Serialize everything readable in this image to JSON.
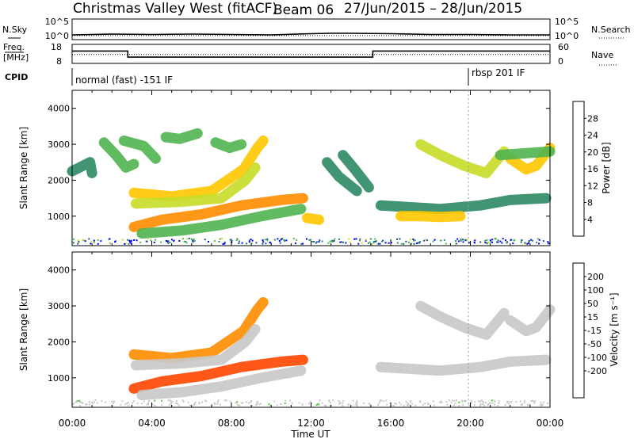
{
  "header": {
    "title": "Christmas Valley West (fitACF)",
    "beam": "Beam 06",
    "date_range": "27/Jun/2015 – 28/Jun/2015"
  },
  "panels": {
    "noise": {
      "left_label": "N.Sky",
      "right_label": "N.Search",
      "left_ticks": [
        "10^5",
        "10^0"
      ],
      "right_ticks": [
        "10^5",
        "10^0"
      ]
    },
    "freq": {
      "left_label_1": "Freq.",
      "left_label_2": "[MHz]",
      "right_label": "Nave",
      "left_ticks": [
        "18",
        "8"
      ],
      "right_ticks": [
        "60",
        "0"
      ]
    },
    "cpid": {
      "label": "CPID",
      "mode_1": "normal (fast) -151 IF",
      "mode_2": "rbsp 201 IF"
    }
  },
  "colors": {
    "power_scale": [
      "#0000ff",
      "#2050a0",
      "#2e8a64",
      "#50b450",
      "#c8dc28",
      "#ffc800",
      "#ff8c00",
      "#ff3c00",
      "#e60000"
    ],
    "velocity_scale": [
      "#ff0000",
      "#ff4600",
      "#ff8c00",
      "#ffbe32",
      "#c8c8c8",
      "#c8c8c8",
      "#50c83c",
      "#2a8c64",
      "#1e50aa",
      "#1428c8"
    ]
  },
  "chart_data": [
    {
      "type": "line",
      "name": "noise",
      "x_unit": "hours UT",
      "xlim": [
        0,
        24
      ],
      "series": [
        {
          "name": "N.Sky",
          "x": [
            0,
            1,
            2,
            4,
            6,
            8,
            10,
            12,
            13,
            14,
            16,
            18,
            20,
            22,
            24
          ],
          "y": [
            1.2,
            1.3,
            1.4,
            1.3,
            1.4,
            1.3,
            1.2,
            1.5,
            1.6,
            1.6,
            1.5,
            1.3,
            1.3,
            1.2,
            1.2
          ]
        },
        {
          "name": "N.Search",
          "x": [
            0,
            4,
            8,
            12,
            16,
            20,
            24
          ],
          "y": [
            1.0,
            1.0,
            1.0,
            1.0,
            1.0,
            1.0,
            1.0
          ]
        }
      ]
    },
    {
      "type": "line",
      "name": "frequency_nave",
      "x_unit": "hours UT",
      "xlim": [
        0,
        24
      ],
      "series": [
        {
          "name": "Freq.",
          "x": [
            0,
            2.8,
            2.8,
            15.1,
            15.1,
            24
          ],
          "y": [
            14.5,
            14.5,
            11.3,
            11.3,
            14.5,
            14.5
          ]
        },
        {
          "name": "Nave",
          "x": [
            0,
            24
          ],
          "y": [
            28,
            28
          ]
        }
      ]
    },
    {
      "type": "heatmap",
      "name": "power",
      "xlabel": "Time UT",
      "ylabel": "Slant Range [km]",
      "xlim": [
        0,
        24
      ],
      "ylim": [
        180,
        4500
      ],
      "x_ticks": [
        "00:00",
        "04:00",
        "08:00",
        "12:00",
        "16:00",
        "20:00",
        "00:00"
      ],
      "y_ticks": [
        1000,
        2000,
        3000,
        4000
      ],
      "colorbar": {
        "label": "Power [dB]",
        "ticks": [
          4,
          8,
          12,
          16,
          20,
          24,
          28
        ],
        "range": [
          0,
          32
        ]
      },
      "features": [
        {
          "t": [
            0.0,
            0.9,
            1.0
          ],
          "range_km": [
            2250,
            2500,
            2200
          ],
          "value": 10
        },
        {
          "t": [
            1.6,
            2.2,
            2.7,
            3.1
          ],
          "range_km": [
            3050,
            2700,
            2350,
            2450
          ],
          "value": 14
        },
        {
          "t": [
            2.6,
            3.6,
            4.2
          ],
          "range_km": [
            3100,
            2950,
            2600
          ],
          "value": 12
        },
        {
          "t": [
            4.7,
            5.4,
            6.3
          ],
          "range_km": [
            3200,
            3150,
            3300
          ],
          "value": 13
        },
        {
          "t": [
            7.2,
            7.9,
            8.5
          ],
          "range_km": [
            3050,
            2900,
            3000
          ],
          "value": 12
        },
        {
          "t": [
            3.1,
            5.0,
            7.0,
            8.6,
            9.3,
            9.6
          ],
          "range_km": [
            1650,
            1550,
            1700,
            2300,
            2900,
            3100
          ],
          "value": 20
        },
        {
          "t": [
            3.2,
            5.5,
            7.5,
            8.7,
            9.2
          ],
          "range_km": [
            1350,
            1400,
            1500,
            2000,
            2350
          ],
          "value": 16
        },
        {
          "t": [
            3.1,
            4.5,
            6.5,
            8.5,
            10.5,
            11.6
          ],
          "range_km": [
            700,
            900,
            1050,
            1300,
            1450,
            1500
          ],
          "value": 22
        },
        {
          "t": [
            3.5,
            5.5,
            7.5,
            9.5,
            11.5
          ],
          "range_km": [
            520,
            600,
            760,
            1000,
            1200
          ],
          "value": 12
        },
        {
          "t": [
            11.8,
            12.4
          ],
          "range_km": [
            950,
            900
          ],
          "value": 20
        },
        {
          "t": [
            12.8,
            13.4,
            14.3
          ],
          "range_km": [
            2500,
            2100,
            1700
          ],
          "value": 10
        },
        {
          "t": [
            13.6,
            14.2,
            14.9
          ],
          "range_km": [
            2700,
            2300,
            1800
          ],
          "value": 10
        },
        {
          "t": [
            15.5,
            17.0,
            18.5,
            20.5,
            22.0,
            23.8
          ],
          "range_km": [
            1300,
            1250,
            1200,
            1300,
            1450,
            1500
          ],
          "value": 10
        },
        {
          "t": [
            16.5,
            17.5,
            18.5,
            19.5
          ],
          "range_km": [
            1000,
            1000,
            980,
            1000
          ],
          "value": 20
        },
        {
          "t": [
            17.5,
            18.5,
            19.7,
            20.8,
            21.7
          ],
          "range_km": [
            3000,
            2700,
            2400,
            2200,
            2800
          ],
          "value": 16
        },
        {
          "t": [
            22.0,
            22.8,
            23.3,
            24.0
          ],
          "range_km": [
            2600,
            2300,
            2400,
            2900
          ],
          "value": 18
        },
        {
          "t": [
            21.5,
            24.0
          ],
          "range_km": [
            2700,
            2800
          ],
          "value": 14
        }
      ]
    },
    {
      "type": "heatmap",
      "name": "velocity",
      "xlabel": "Time UT",
      "ylabel": "Slant Range [km]",
      "xlim": [
        0,
        24
      ],
      "ylim": [
        180,
        4500
      ],
      "x_ticks": [
        "00:00",
        "04:00",
        "08:00",
        "12:00",
        "16:00",
        "20:00",
        "00:00"
      ],
      "y_ticks": [
        1000,
        2000,
        3000,
        4000
      ],
      "colorbar": {
        "label": "Velocity [m s⁻¹]",
        "ticks": [
          200,
          100,
          50,
          15,
          -15,
          -50,
          -100,
          -200
        ]
      },
      "features": [
        {
          "t": [
            3.1,
            5.0,
            7.0,
            8.6,
            9.3,
            9.6
          ],
          "range_km": [
            1650,
            1550,
            1700,
            2300,
            2900,
            3100
          ],
          "value": -60
        },
        {
          "t": [
            3.1,
            4.5,
            6.5,
            8.5,
            10.5,
            11.6
          ],
          "range_km": [
            700,
            900,
            1050,
            1300,
            1450,
            1500
          ],
          "value": -140
        },
        {
          "t": [
            3.5,
            5.5,
            7.5,
            9.5,
            11.5
          ],
          "range_km": [
            520,
            600,
            760,
            1000,
            1200
          ],
          "value": -5
        },
        {
          "t": [
            3.2,
            5.5,
            7.5,
            8.7,
            9.2
          ],
          "range_km": [
            1350,
            1400,
            1500,
            2000,
            2350
          ],
          "value": 0
        },
        {
          "t": [
            15.5,
            17.0,
            18.5,
            20.5,
            22.0,
            23.8
          ],
          "range_km": [
            1300,
            1250,
            1200,
            1300,
            1450,
            1500
          ],
          "value": 0
        },
        {
          "t": [
            17.5,
            18.5,
            19.7,
            20.8,
            21.7
          ],
          "range_km": [
            3000,
            2700,
            2400,
            2200,
            2800
          ],
          "value": 0
        },
        {
          "t": [
            22.0,
            22.8,
            23.3,
            24.0
          ],
          "range_km": [
            2600,
            2300,
            2400,
            2900
          ],
          "value": 0
        }
      ]
    }
  ]
}
